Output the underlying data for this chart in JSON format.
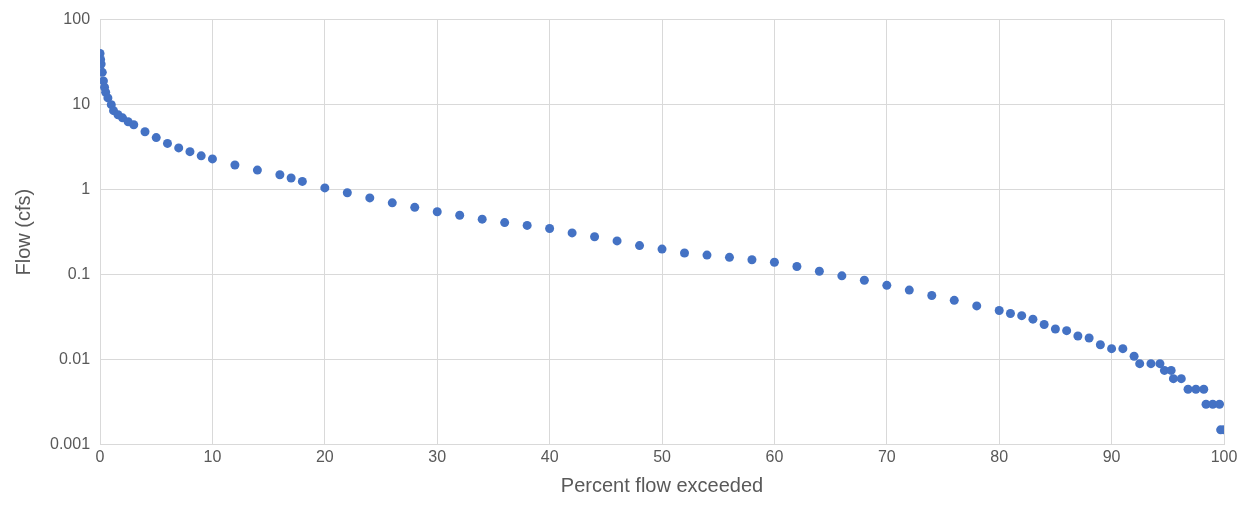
{
  "chart_data": {
    "type": "scatter",
    "xlabel": "Percent flow exceeded",
    "ylabel": "Flow (cfs)",
    "log": "y",
    "grid": true,
    "marker": "circle",
    "legend": false,
    "xlim": [
      0,
      100
    ],
    "xticks": [
      0,
      10,
      20,
      30,
      40,
      50,
      60,
      70,
      80,
      90,
      100
    ],
    "ylim": [
      0.001,
      100
    ],
    "yticks": [
      0.001,
      0.01,
      0.1,
      1,
      10,
      100
    ],
    "series": [
      {
        "color": "#4472c4",
        "x": [
          0,
          0.05,
          0.1,
          0.2,
          0.3,
          0.4,
          0.5,
          0.7,
          1,
          1.2,
          1.6,
          2,
          2.5,
          3,
          4,
          5,
          6,
          7,
          8,
          9,
          10,
          12,
          14,
          16,
          17,
          18,
          20,
          22,
          24,
          26,
          28,
          30,
          32,
          34,
          36,
          38,
          40,
          42,
          44,
          46,
          48,
          50,
          52,
          54,
          56,
          58,
          60,
          62,
          64,
          66,
          68,
          70,
          72,
          74,
          76,
          78,
          80,
          81,
          82,
          83,
          84,
          85,
          86,
          87,
          88,
          89,
          90,
          91,
          92,
          92.5,
          93.5,
          94.3,
          94.7,
          95.3,
          95.5,
          96.2,
          96.8,
          97.5,
          98.2,
          98.4,
          99,
          99.6,
          99.7,
          100
        ],
        "values": [
          40,
          34,
          30,
          24,
          19,
          16,
          14,
          12,
          10,
          8.5,
          7.6,
          7,
          6.3,
          5.8,
          4.8,
          4.1,
          3.5,
          3.1,
          2.8,
          2.5,
          2.3,
          1.95,
          1.7,
          1.5,
          1.37,
          1.25,
          1.05,
          0.92,
          0.8,
          0.7,
          0.62,
          0.55,
          0.5,
          0.45,
          0.41,
          0.38,
          0.35,
          0.31,
          0.28,
          0.25,
          0.22,
          0.2,
          0.18,
          0.17,
          0.16,
          0.15,
          0.14,
          0.125,
          0.11,
          0.097,
          0.086,
          0.075,
          0.066,
          0.057,
          0.05,
          0.043,
          0.038,
          0.035,
          0.033,
          0.03,
          0.026,
          0.023,
          0.022,
          0.019,
          0.018,
          0.015,
          0.0135,
          0.0135,
          0.011,
          0.009,
          0.009,
          0.009,
          0.0075,
          0.0075,
          0.006,
          0.006,
          0.0045,
          0.0045,
          0.0045,
          0.003,
          0.003,
          0.003,
          0.0015,
          0.0015
        ]
      }
    ]
  }
}
